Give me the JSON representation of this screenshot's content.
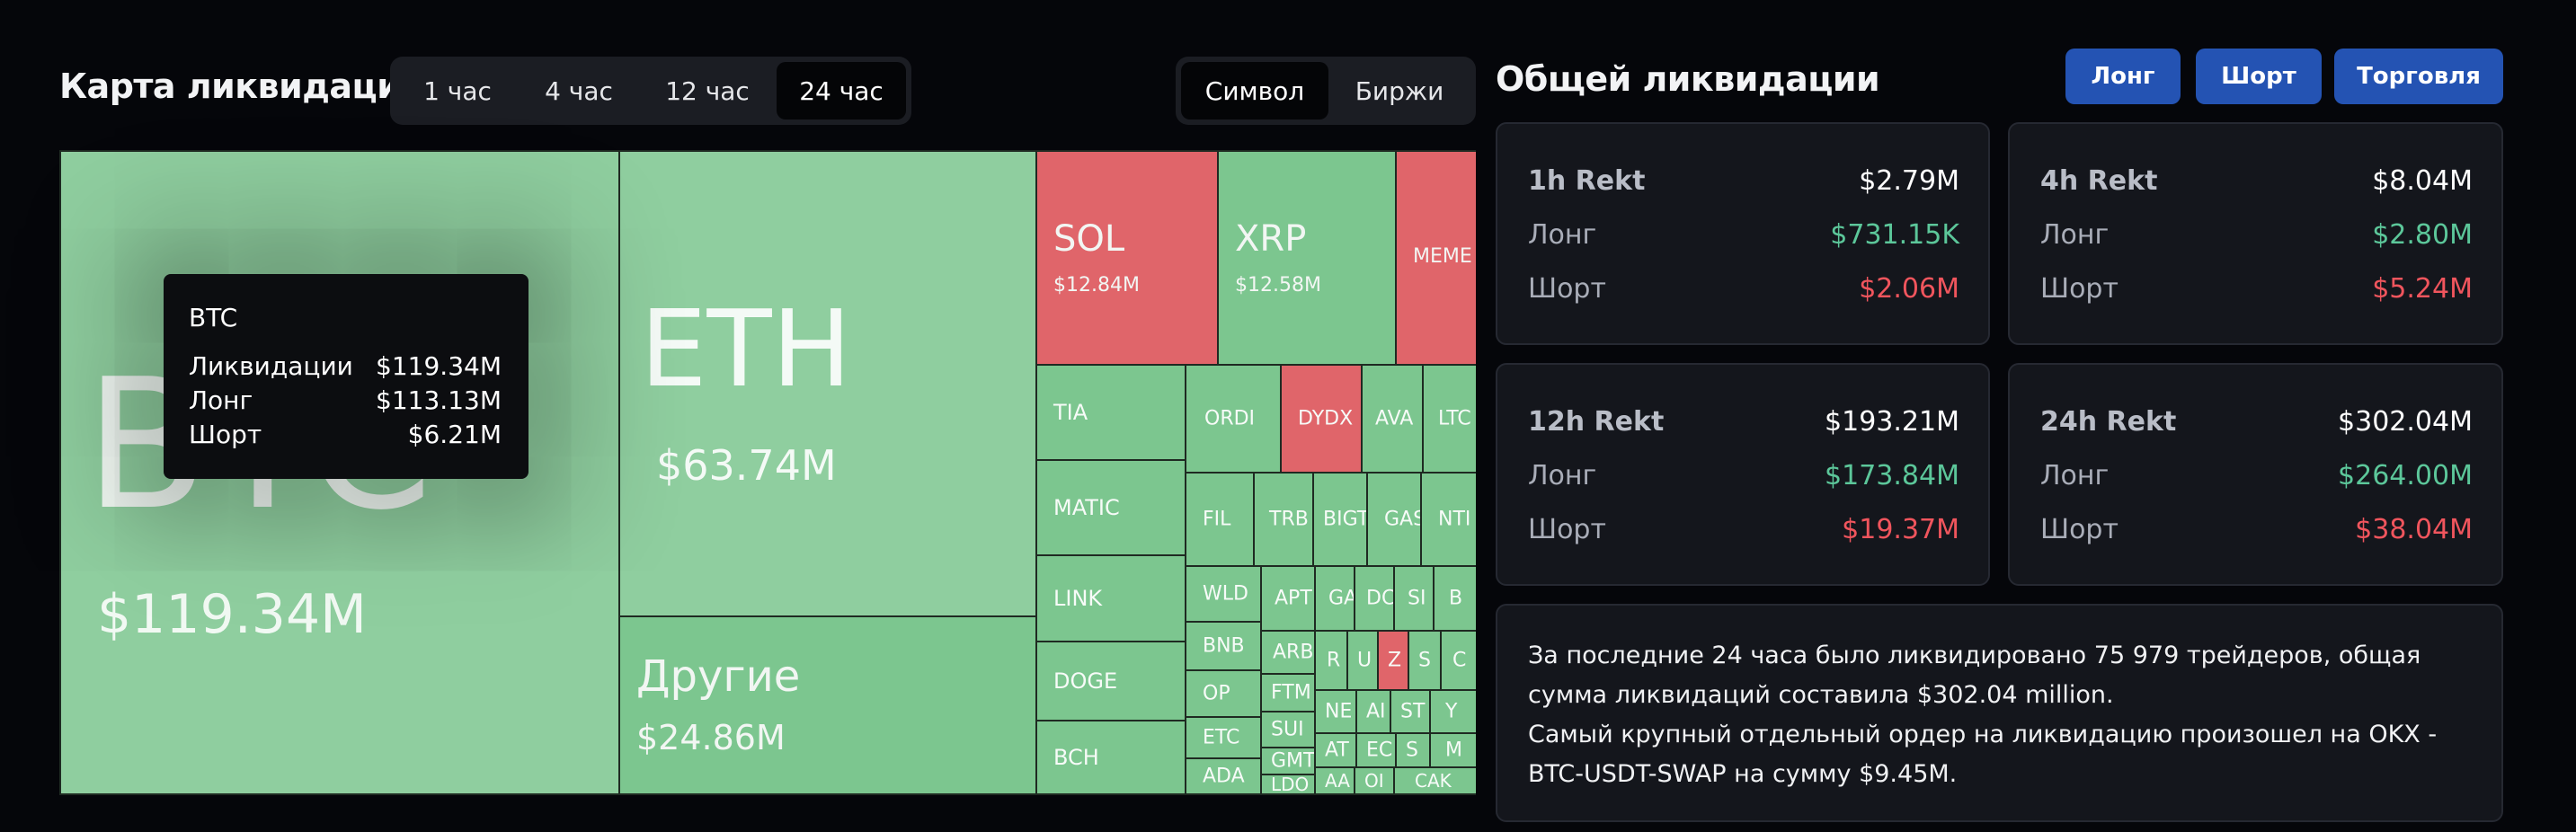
{
  "left": {
    "title": "Карта ликвидаций",
    "time_tabs": [
      "1 час",
      "4 час",
      "12 час",
      "24 час"
    ],
    "time_active": "24 час",
    "view_tabs": [
      "Символ",
      "Биржи"
    ],
    "view_active": "Символ"
  },
  "treemap": {
    "tiles": [
      {
        "symbol": "BTC",
        "value": "$119.34M"
      },
      {
        "symbol": "ETH",
        "value": "$63.74M"
      },
      {
        "symbol": "Другие",
        "value": "$24.86M"
      },
      {
        "symbol": "SOL",
        "value": "$12.84M"
      },
      {
        "symbol": "XRP",
        "value": "$12.58M"
      },
      {
        "symbol": "MEME"
      },
      {
        "symbol": "TIA"
      },
      {
        "symbol": "ORDI"
      },
      {
        "symbol": "DYDX"
      },
      {
        "symbol": "AVA"
      },
      {
        "symbol": "LTC"
      },
      {
        "symbol": "MATIC"
      },
      {
        "symbol": "FIL"
      },
      {
        "symbol": "TRB"
      },
      {
        "symbol": "BIGT"
      },
      {
        "symbol": "GAS"
      },
      {
        "symbol": "NTI"
      },
      {
        "symbol": "LINK"
      },
      {
        "symbol": "WLD"
      },
      {
        "symbol": "APT"
      },
      {
        "symbol": "GA"
      },
      {
        "symbol": "DC"
      },
      {
        "symbol": "SI"
      },
      {
        "symbol": "B"
      },
      {
        "symbol": "BNB"
      },
      {
        "symbol": "ARB"
      },
      {
        "symbol": "R"
      },
      {
        "symbol": "U"
      },
      {
        "symbol": "Z"
      },
      {
        "symbol": "S"
      },
      {
        "symbol": "C"
      },
      {
        "symbol": "DOGE"
      },
      {
        "symbol": "OP"
      },
      {
        "symbol": "FTM"
      },
      {
        "symbol": "NE"
      },
      {
        "symbol": "AI"
      },
      {
        "symbol": "ST"
      },
      {
        "symbol": "Y"
      },
      {
        "symbol": "BCH"
      },
      {
        "symbol": "ETC"
      },
      {
        "symbol": "SUI"
      },
      {
        "symbol": "AT"
      },
      {
        "symbol": "EC"
      },
      {
        "symbol": "S"
      },
      {
        "symbol": "M"
      },
      {
        "symbol": "ADA"
      },
      {
        "symbol": "GMT"
      },
      {
        "symbol": "LDO"
      },
      {
        "symbol": "AA"
      },
      {
        "symbol": "OI"
      },
      {
        "symbol": "CAK"
      }
    ],
    "tooltip": {
      "symbol": "BTC",
      "rows": [
        {
          "label": "Ликвидации",
          "value": "$119.34M"
        },
        {
          "label": "Лонг",
          "value": "$113.13M"
        },
        {
          "label": "Шорт",
          "value": "$6.21M"
        }
      ]
    }
  },
  "right": {
    "title": "Общей ликвидации",
    "buttons": [
      "Лонг",
      "Шорт",
      "Торговля"
    ],
    "cards": [
      {
        "head": "1h Rekt",
        "total": "$2.79M",
        "long_label": "Лонг",
        "long": "$731.15K",
        "short_label": "Шорт",
        "short": "$2.06M"
      },
      {
        "head": "4h Rekt",
        "total": "$8.04M",
        "long_label": "Лонг",
        "long": "$2.80M",
        "short_label": "Шорт",
        "short": "$5.24M"
      },
      {
        "head": "12h Rekt",
        "total": "$193.21M",
        "long_label": "Лонг",
        "long": "$173.84M",
        "short_label": "Шорт",
        "short": "$19.37M"
      },
      {
        "head": "24h Rekt",
        "total": "$302.04M",
        "long_label": "Лонг",
        "long": "$264.00M",
        "short_label": "Шорт",
        "short": "$38.04M"
      }
    ],
    "summary": [
      "За последние 24 часа было ликвидировано 75 979 трейдеров, общая сумма ликвидаций составила $302.04 million.",
      "Самый крупный отдельный ордер на ликвидацию произошел на OKX - BTC-USDT-SWAP на сумму $9.45M."
    ]
  },
  "colors": {
    "background": "#05060a",
    "long_green": "#5cc79a",
    "short_red": "#f0555d",
    "button_blue": "#2453b3",
    "tile_green": "#8fce9f",
    "tile_red": "#e0656a"
  }
}
